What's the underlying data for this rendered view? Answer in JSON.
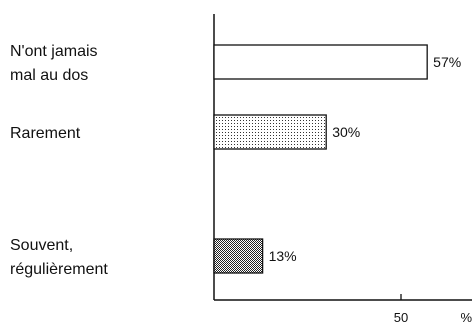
{
  "chart_data": {
    "type": "bar",
    "orientation": "horizontal",
    "categories": [
      [
        "N'ont jamais",
        "mal au dos"
      ],
      [
        "Rarement"
      ],
      [
        "Souvent,",
        "régulièrement"
      ]
    ],
    "values": [
      57,
      30,
      13
    ],
    "value_labels": [
      "57%",
      "30%",
      "13%"
    ],
    "bar_fills": [
      "blank",
      "light-dots",
      "dense-dots"
    ],
    "xlim": [
      0,
      65
    ],
    "x_ticks": [
      50
    ],
    "x_tick_labels": [
      "50"
    ],
    "x_unit": "%",
    "colors": {
      "ink": "#111111",
      "background": "#ffffff"
    }
  }
}
